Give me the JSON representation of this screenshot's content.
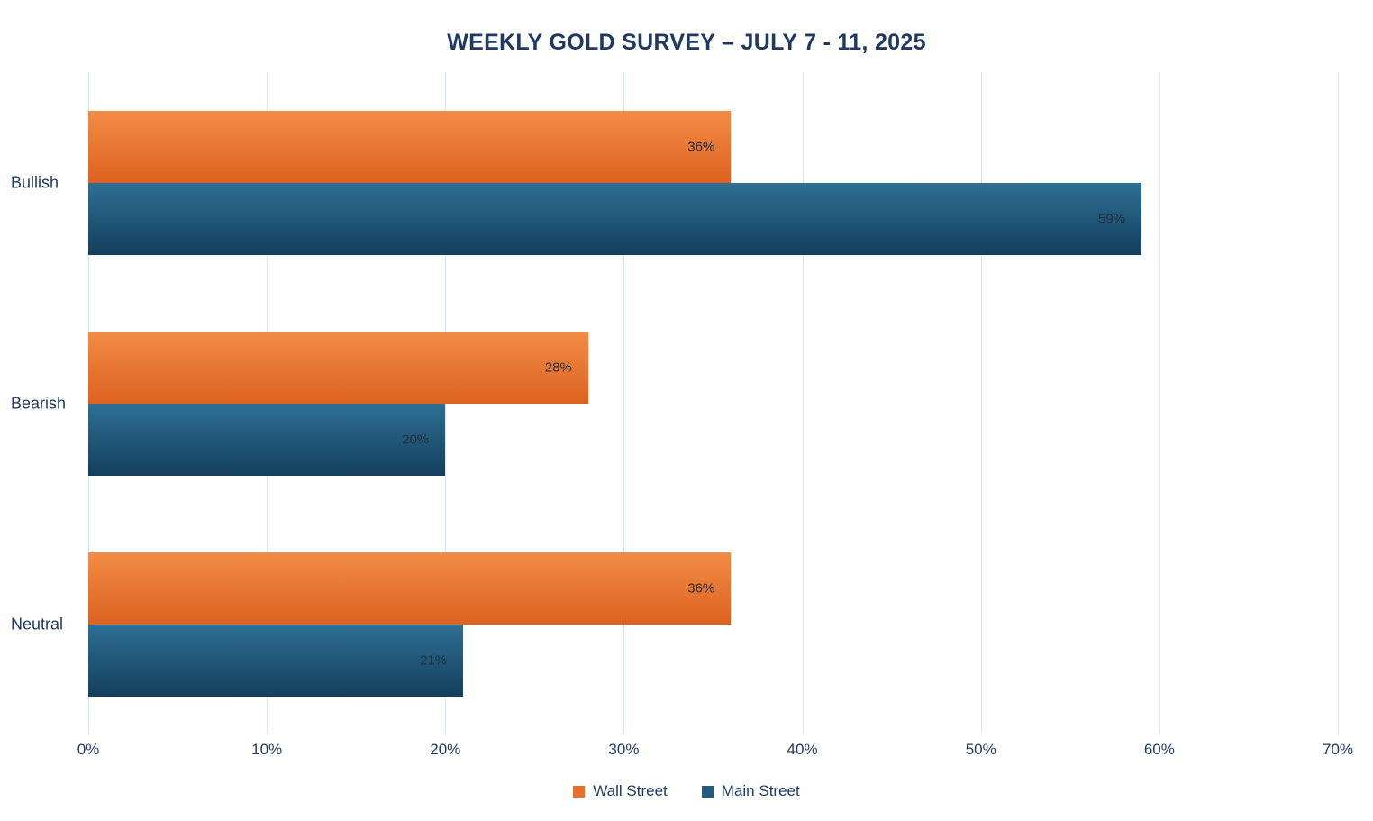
{
  "chart_data": {
    "type": "bar",
    "orientation": "horizontal",
    "title": "WEEKLY GOLD SURVEY – JULY 7 - 11, 2025",
    "categories": [
      "Bullish",
      "Bearish",
      "Neutral"
    ],
    "series": [
      {
        "name": "Wall Street",
        "values": [
          36,
          28,
          36
        ],
        "color_top": "#F28C46",
        "color_bottom": "#DD6220",
        "swatch": "#E8702D"
      },
      {
        "name": "Main Street",
        "values": [
          59,
          20,
          21
        ],
        "color_top": "#2E6F95",
        "color_bottom": "#133F5C",
        "swatch": "#1F5C80"
      }
    ],
    "data_label_format": "{v}%",
    "x_ticks": [
      "0%",
      "10%",
      "20%",
      "30%",
      "40%",
      "50%",
      "60%",
      "70%"
    ],
    "xlim": [
      0,
      70
    ],
    "grid": true,
    "gridline_color": "#D9E5F2",
    "title_color": "#1F3864",
    "legend_position": "bottom"
  }
}
